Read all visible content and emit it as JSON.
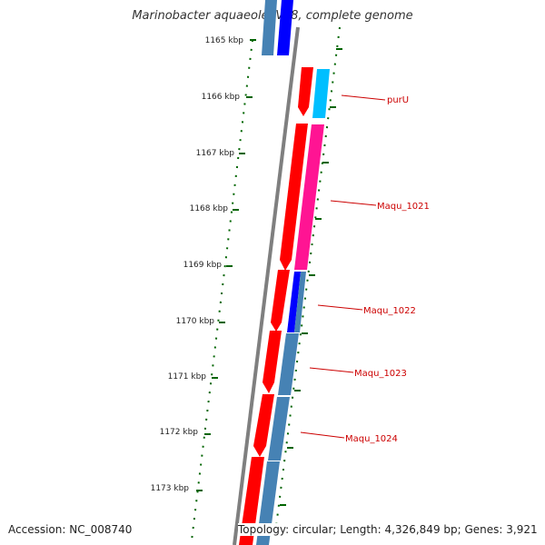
{
  "title": "Marinobacter aquaeolei VT8, complete genome",
  "footer": {
    "accession": "Accession: NC_008740",
    "topology": "Topology: circular; Length: 4,326,849 bp; Genes: 3,921"
  },
  "ticks": [
    {
      "label": "1165 kbp"
    },
    {
      "label": "1166 kbp"
    },
    {
      "label": "1167 kbp"
    },
    {
      "label": "1168 kbp"
    },
    {
      "label": "1169 kbp"
    },
    {
      "label": "1170 kbp"
    },
    {
      "label": "1171 kbp"
    },
    {
      "label": "1172 kbp"
    },
    {
      "label": "1173 kbp"
    }
  ],
  "gene_labels": [
    "purU",
    "Maqu_1021",
    "Maqu_1022",
    "Maqu_1023",
    "Maqu_1024"
  ],
  "colors": {
    "red": "#ff0000",
    "blue": "#0000ff",
    "steel_blue": "#4682b4",
    "cyan": "#00bfff",
    "magenta": "#ff1493",
    "backbone": "#7f7f7f",
    "tick": "#006400",
    "label": "#cc0000"
  }
}
